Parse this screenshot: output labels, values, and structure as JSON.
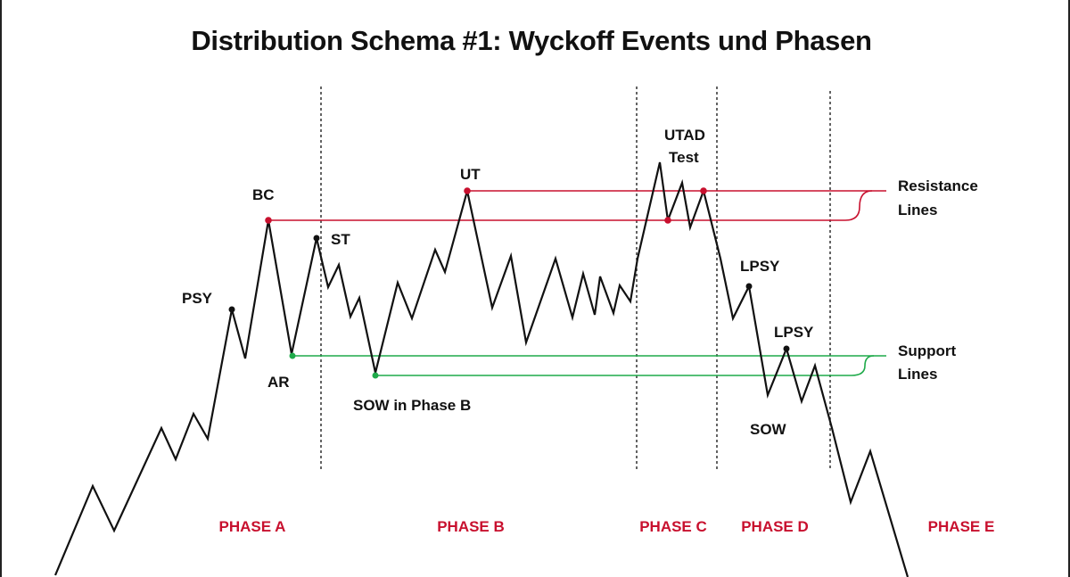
{
  "title": "Distribution Schema #1: Wyckoff Events und Phasen",
  "colors": {
    "price": "#111111",
    "resistance": "#c8102e",
    "support": "#1faa4a",
    "phase_label": "#c8102e"
  },
  "events": {
    "psy": "PSY",
    "bc": "BC",
    "ar": "AR",
    "st": "ST",
    "sow_b": "SOW in Phase B",
    "ut": "UT",
    "utad": "UTAD",
    "test": "Test",
    "lpsy1": "LPSY",
    "lpsy2": "LPSY",
    "sow": "SOW"
  },
  "legend": {
    "resistance_line1": "Resistance",
    "resistance_line2": "Lines",
    "support_line1": "Support",
    "support_line2": "Lines"
  },
  "phases": [
    "PHASE A",
    "PHASE B",
    "PHASE C",
    "PHASE D",
    "PHASE E"
  ]
}
